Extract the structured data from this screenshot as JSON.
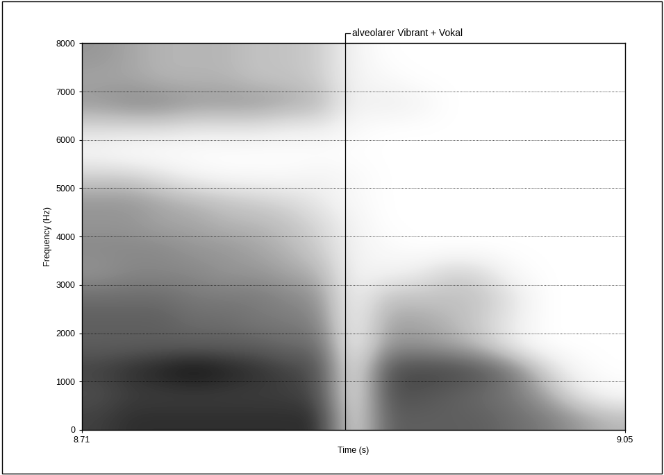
{
  "chart_data": {
    "type": "spectrogram",
    "x_label": "Time (s)",
    "y_label": "Frequency (Hz)",
    "xlim": [
      8.71,
      9.05
    ],
    "ylim": [
      0,
      8000
    ],
    "xticks": [
      8.71,
      9.05
    ],
    "yticks": [
      0,
      1000,
      2000,
      3000,
      4000,
      5000,
      6000,
      7000,
      8000
    ],
    "grid": true,
    "value_range": [
      0,
      1
    ],
    "annotations": [
      {
        "text": "alveolarer Vibrant + Vokal",
        "x": 8.875
      }
    ],
    "cells": [
      [
        0.8,
        0.85,
        0.85,
        0.85,
        0.85,
        0.85,
        0.85,
        0.85,
        0.2,
        0.7,
        0.7,
        0.7,
        0.7,
        0.65,
        0.6,
        0.5,
        0.4
      ],
      [
        0.75,
        0.8,
        0.8,
        0.8,
        0.8,
        0.8,
        0.8,
        0.75,
        0.15,
        0.75,
        0.75,
        0.7,
        0.65,
        0.6,
        0.45,
        0.2,
        0.05
      ],
      [
        0.8,
        0.85,
        0.9,
        0.95,
        0.9,
        0.85,
        0.8,
        0.75,
        0.15,
        0.75,
        0.8,
        0.8,
        0.75,
        0.6,
        0.3,
        0.05,
        0
      ],
      [
        0.7,
        0.7,
        0.7,
        0.7,
        0.7,
        0.7,
        0.65,
        0.65,
        0.1,
        0.5,
        0.5,
        0.45,
        0.35,
        0.15,
        0,
        0,
        0
      ],
      [
        0.7,
        0.7,
        0.7,
        0.65,
        0.65,
        0.6,
        0.6,
        0.55,
        0.1,
        0.45,
        0.45,
        0.4,
        0.3,
        0.15,
        0,
        0,
        0
      ],
      [
        0.65,
        0.65,
        0.65,
        0.6,
        0.6,
        0.6,
        0.55,
        0.5,
        0.1,
        0.35,
        0.35,
        0.35,
        0.35,
        0.2,
        0,
        0,
        0
      ],
      [
        0.5,
        0.55,
        0.55,
        0.55,
        0.5,
        0.5,
        0.45,
        0.4,
        0.1,
        0.1,
        0.15,
        0.3,
        0.25,
        0.05,
        0,
        0,
        0
      ],
      [
        0.55,
        0.55,
        0.55,
        0.5,
        0.5,
        0.45,
        0.4,
        0.3,
        0.1,
        0.05,
        0,
        0,
        0,
        0,
        0,
        0,
        0
      ],
      [
        0.5,
        0.5,
        0.45,
        0.45,
        0.4,
        0.4,
        0.35,
        0.25,
        0.1,
        0,
        0,
        0,
        0,
        0,
        0,
        0,
        0
      ],
      [
        0.5,
        0.5,
        0.45,
        0.4,
        0.35,
        0.3,
        0.25,
        0.15,
        0.05,
        0,
        0,
        0,
        0,
        0,
        0,
        0,
        0
      ],
      [
        0.3,
        0.3,
        0.2,
        0.1,
        0.05,
        0.05,
        0.05,
        0.1,
        0.05,
        0,
        0,
        0,
        0,
        0,
        0,
        0,
        0
      ],
      [
        0.05,
        0,
        0,
        0,
        0,
        0,
        0,
        0,
        0,
        0,
        0,
        0,
        0,
        0,
        0,
        0,
        0
      ],
      [
        0.25,
        0.25,
        0.25,
        0.2,
        0.2,
        0.2,
        0.15,
        0.15,
        0.05,
        0,
        0,
        0,
        0,
        0,
        0,
        0,
        0
      ],
      [
        0.5,
        0.55,
        0.55,
        0.5,
        0.5,
        0.5,
        0.45,
        0.4,
        0.1,
        0.15,
        0.1,
        0,
        0,
        0,
        0,
        0,
        0
      ],
      [
        0.45,
        0.45,
        0.4,
        0.4,
        0.4,
        0.35,
        0.35,
        0.3,
        0.1,
        0.05,
        0,
        0,
        0,
        0,
        0,
        0,
        0
      ],
      [
        0.5,
        0.45,
        0.4,
        0.4,
        0.4,
        0.35,
        0.35,
        0.3,
        0.1,
        0,
        0,
        0,
        0,
        0,
        0,
        0,
        0
      ]
    ]
  }
}
